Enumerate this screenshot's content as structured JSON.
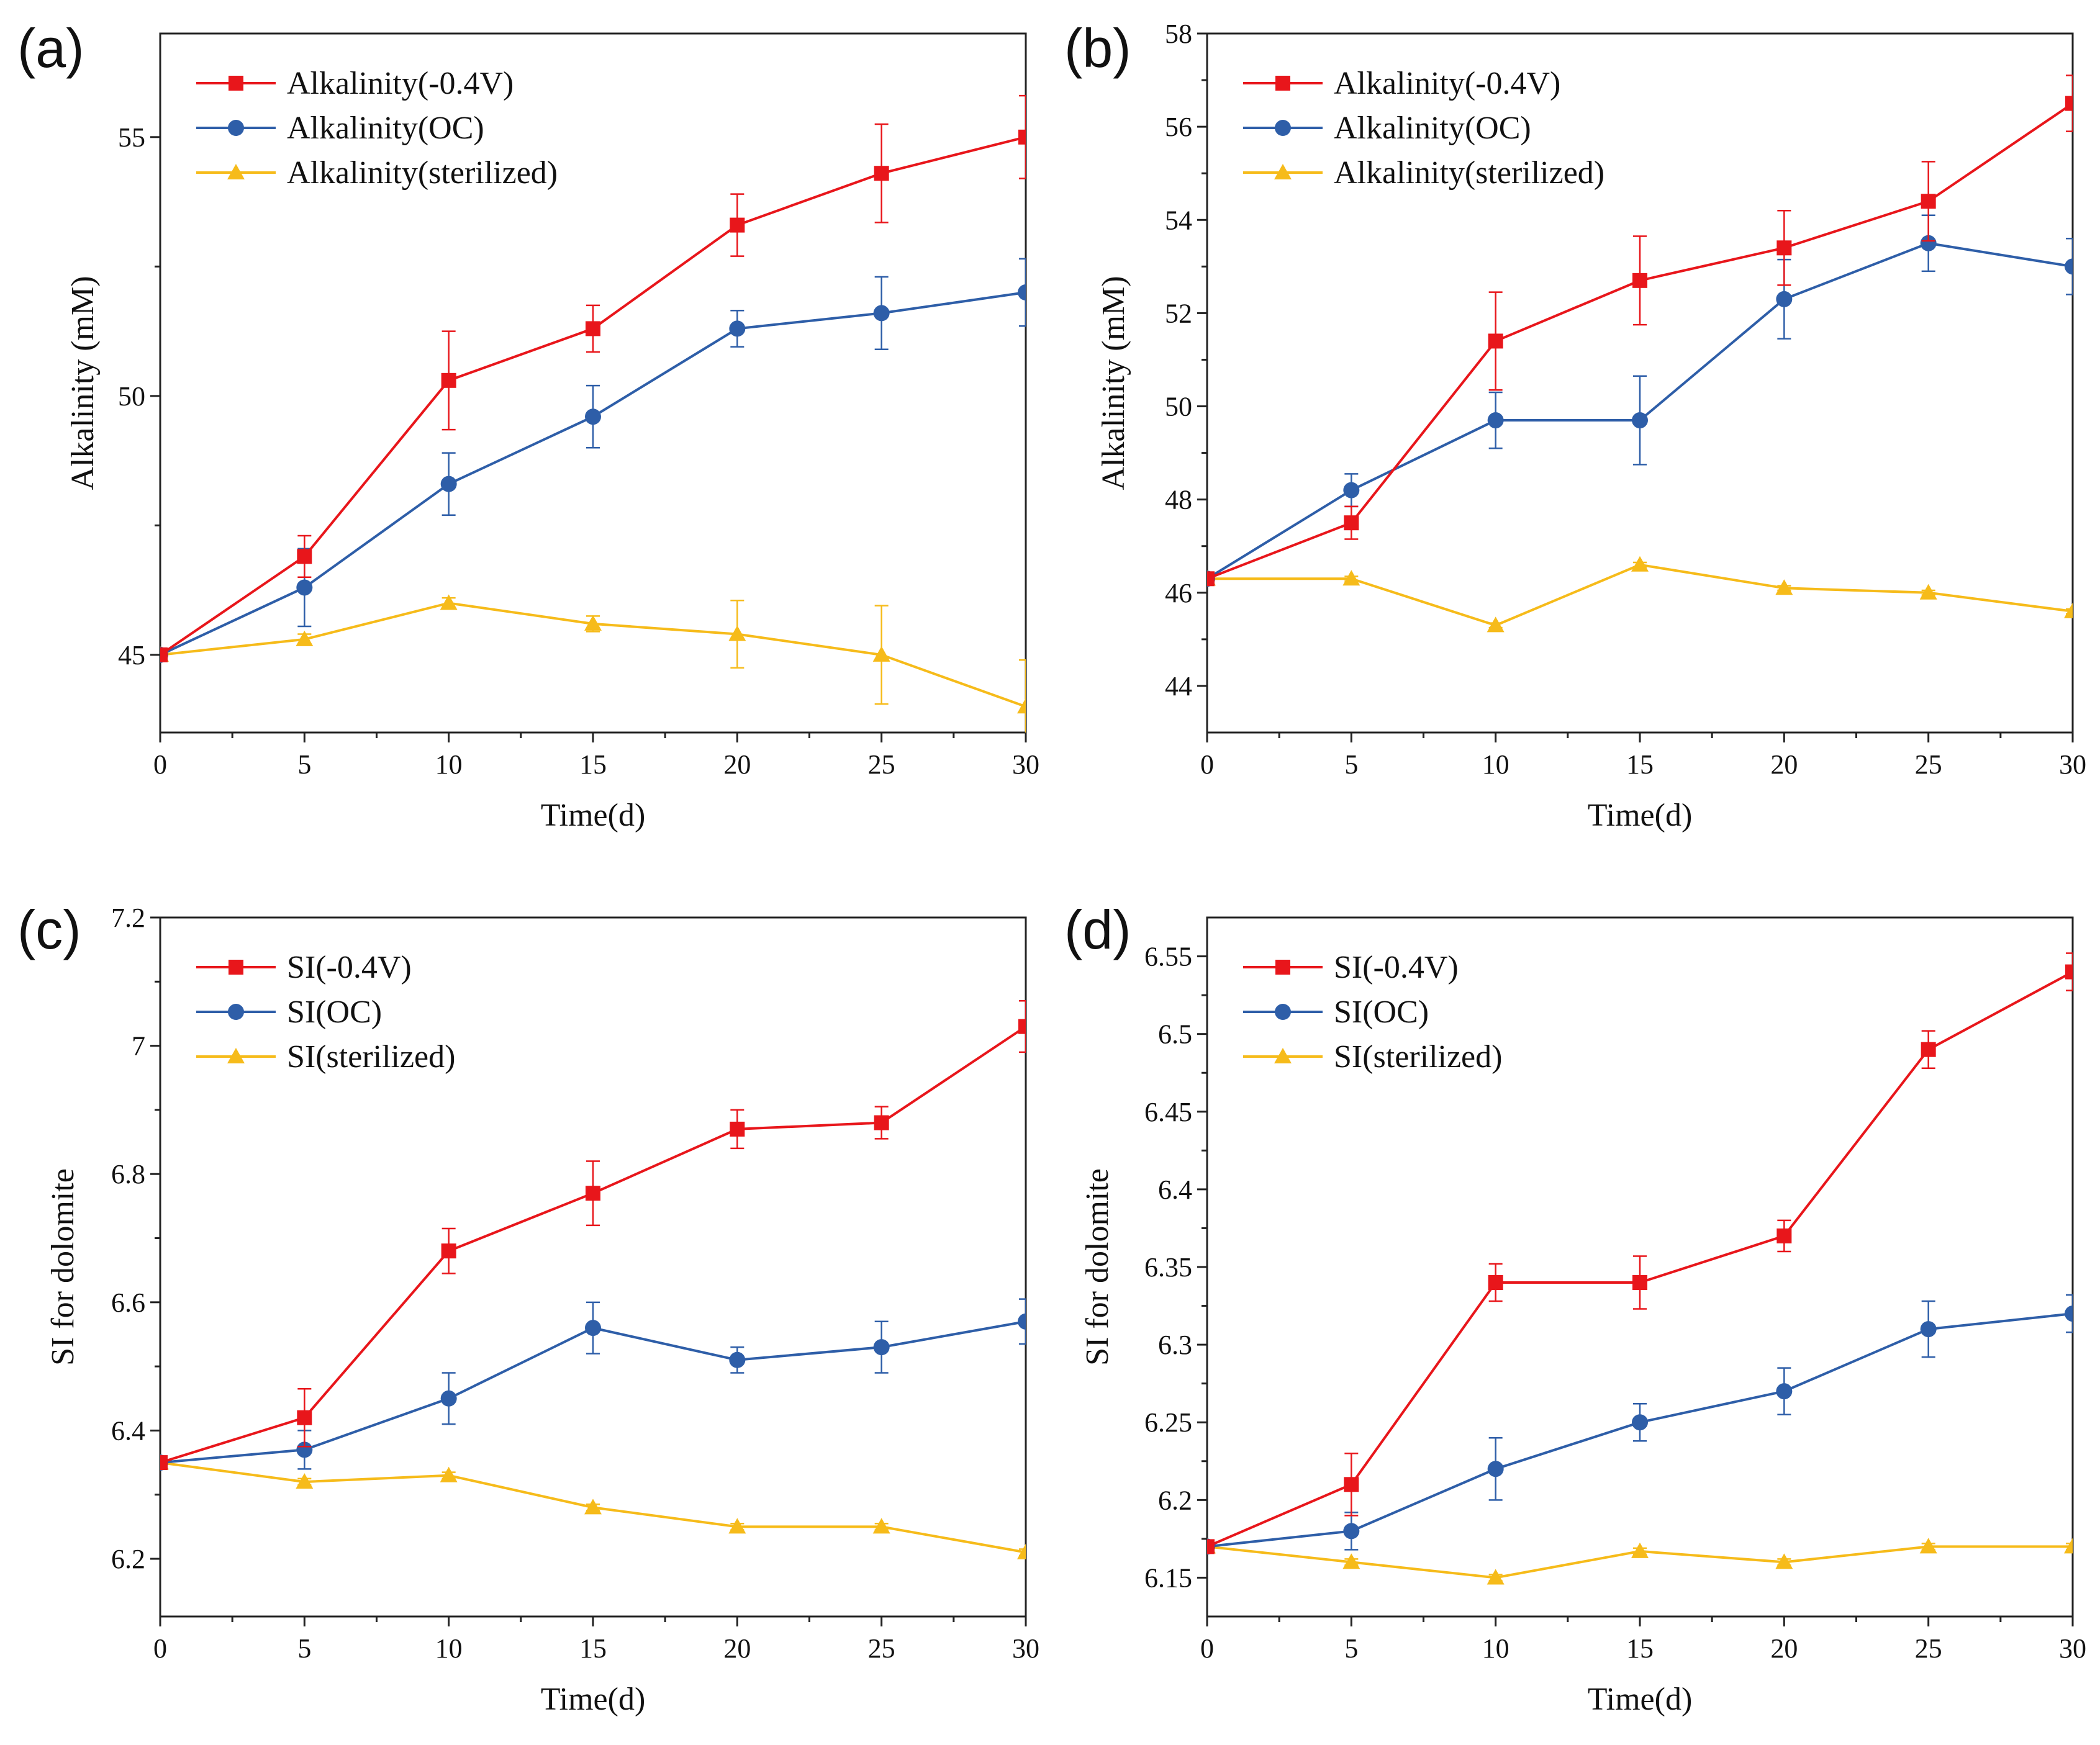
{
  "chart_data": [
    {
      "type": "line",
      "panel_label": "(a)",
      "xlabel": "Time(d)",
      "ylabel": "Alkalinity (mM)",
      "xlim": [
        0,
        30
      ],
      "ylim": [
        43.5,
        57
      ],
      "xticks": [
        0,
        5,
        10,
        15,
        20,
        25,
        30
      ],
      "yticks": [
        45,
        50,
        55
      ],
      "ytick_labels": [
        "45",
        "50",
        "55"
      ],
      "legend_position": "top-left",
      "x": [
        0,
        5,
        10,
        15,
        20,
        25,
        30
      ],
      "series": [
        {
          "name": "Alkalinity(-0.4V)",
          "color": "#e8161b",
          "marker": "square",
          "values": [
            45.0,
            46.9,
            50.3,
            51.3,
            53.3,
            54.3,
            55.0
          ],
          "errors": [
            0.05,
            0.4,
            0.95,
            0.45,
            0.6,
            0.95,
            0.8
          ]
        },
        {
          "name": "Alkalinity(OC)",
          "color": "#2e5ea8",
          "marker": "circle",
          "values": [
            45.0,
            46.3,
            48.3,
            49.6,
            51.3,
            51.6,
            52.0
          ],
          "errors": [
            0.05,
            0.75,
            0.6,
            0.6,
            0.35,
            0.7,
            0.65
          ]
        },
        {
          "name": "Alkalinity(sterilized)",
          "color": "#f6bb1a",
          "marker": "triangle",
          "values": [
            45.0,
            45.3,
            46.0,
            45.6,
            45.4,
            45.0,
            44.0
          ],
          "errors": [
            0.05,
            0.1,
            0.1,
            0.15,
            0.65,
            0.95,
            0.9
          ]
        }
      ]
    },
    {
      "type": "line",
      "panel_label": "(b)",
      "xlabel": "Time(d)",
      "ylabel": "Alkalinity (mM)",
      "xlim": [
        0,
        30
      ],
      "ylim": [
        43,
        58
      ],
      "xticks": [
        0,
        5,
        10,
        15,
        20,
        25,
        30
      ],
      "yticks": [
        44,
        46,
        48,
        50,
        52,
        54,
        56,
        58
      ],
      "ytick_labels": [
        "44",
        "46",
        "48",
        "50",
        "52",
        "54",
        "56",
        "58"
      ],
      "legend_position": "top-left",
      "x": [
        0,
        5,
        10,
        15,
        20,
        25,
        30
      ],
      "series": [
        {
          "name": "Alkalinity(-0.4V)",
          "color": "#e8161b",
          "marker": "square",
          "values": [
            46.3,
            47.5,
            51.4,
            52.7,
            53.4,
            54.4,
            56.5
          ],
          "errors": [
            0.05,
            0.35,
            1.05,
            0.95,
            0.8,
            0.85,
            0.6
          ]
        },
        {
          "name": "Alkalinity(OC)",
          "color": "#2e5ea8",
          "marker": "circle",
          "values": [
            46.3,
            48.2,
            49.7,
            49.7,
            52.3,
            53.5,
            53.0
          ],
          "errors": [
            0.05,
            0.35,
            0.6,
            0.95,
            0.85,
            0.6,
            0.6
          ]
        },
        {
          "name": "Alkalinity(sterilized)",
          "color": "#f6bb1a",
          "marker": "triangle",
          "values": [
            46.3,
            46.3,
            45.3,
            46.6,
            46.1,
            46.0,
            45.6
          ],
          "errors": [
            0.05,
            0.05,
            0.05,
            0.05,
            0.05,
            0.05,
            0.05
          ]
        }
      ]
    },
    {
      "type": "line",
      "panel_label": "(c)",
      "xlabel": "Time(d)",
      "ylabel": "SI for dolomite",
      "xlim": [
        0,
        30
      ],
      "ylim": [
        6.11,
        7.2
      ],
      "xticks": [
        0,
        5,
        10,
        15,
        20,
        25,
        30
      ],
      "yticks": [
        6.2,
        6.4,
        6.6,
        6.8,
        7.0,
        7.2
      ],
      "ytick_labels": [
        "6.2",
        "6.4",
        "6.6",
        "6.8",
        "7",
        "7.2"
      ],
      "legend_position": "top-left",
      "x": [
        0,
        5,
        10,
        15,
        20,
        25,
        30
      ],
      "series": [
        {
          "name": "SI(-0.4V)",
          "color": "#e8161b",
          "marker": "square",
          "values": [
            6.35,
            6.42,
            6.68,
            6.77,
            6.87,
            6.88,
            7.03
          ],
          "errors": [
            0.005,
            0.045,
            0.035,
            0.05,
            0.03,
            0.025,
            0.04
          ]
        },
        {
          "name": "SI(OC)",
          "color": "#2e5ea8",
          "marker": "circle",
          "values": [
            6.35,
            6.37,
            6.45,
            6.56,
            6.51,
            6.53,
            6.57
          ],
          "errors": [
            0.005,
            0.03,
            0.04,
            0.04,
            0.02,
            0.04,
            0.035
          ]
        },
        {
          "name": "SI(sterilized)",
          "color": "#f6bb1a",
          "marker": "triangle",
          "values": [
            6.35,
            6.32,
            6.33,
            6.28,
            6.25,
            6.25,
            6.21
          ],
          "errors": [
            0.005,
            0.005,
            0.005,
            0.005,
            0.005,
            0.005,
            0.005
          ]
        }
      ]
    },
    {
      "type": "line",
      "panel_label": "(d)",
      "xlabel": "Time(d)",
      "ylabel": "SI for dolomite",
      "xlim": [
        0,
        30
      ],
      "ylim": [
        6.125,
        6.575
      ],
      "xticks": [
        0,
        5,
        10,
        15,
        20,
        25,
        30
      ],
      "yticks": [
        6.15,
        6.2,
        6.25,
        6.3,
        6.35,
        6.4,
        6.45,
        6.5,
        6.55
      ],
      "ytick_labels": [
        "6.15",
        "6.2",
        "6.25",
        "6.3",
        "6.35",
        "6.4",
        "6.45",
        "6.5",
        "6.55"
      ],
      "legend_position": "top-left",
      "x": [
        0,
        5,
        10,
        15,
        20,
        25,
        30
      ],
      "series": [
        {
          "name": "SI(-0.4V)",
          "color": "#e8161b",
          "marker": "square",
          "values": [
            6.17,
            6.21,
            6.34,
            6.34,
            6.37,
            6.49,
            6.54
          ],
          "errors": [
            0.002,
            0.02,
            0.012,
            0.017,
            0.01,
            0.012,
            0.012
          ]
        },
        {
          "name": "SI(OC)",
          "color": "#2e5ea8",
          "marker": "circle",
          "values": [
            6.17,
            6.18,
            6.22,
            6.25,
            6.27,
            6.31,
            6.32
          ],
          "errors": [
            0.002,
            0.012,
            0.02,
            0.012,
            0.015,
            0.018,
            0.012
          ]
        },
        {
          "name": "SI(sterilized)",
          "color": "#f6bb1a",
          "marker": "triangle",
          "values": [
            6.17,
            6.16,
            6.15,
            6.167,
            6.16,
            6.17,
            6.17
          ],
          "errors": [
            0.002,
            0.002,
            0.002,
            0.002,
            0.002,
            0.002,
            0.002
          ]
        }
      ]
    }
  ]
}
